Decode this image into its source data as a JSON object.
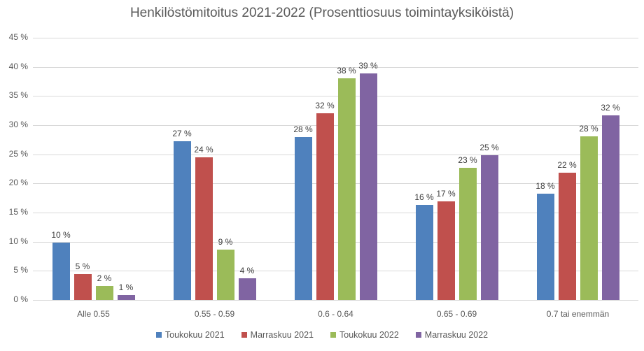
{
  "chart_data": {
    "type": "bar",
    "title": "Henkilöstömitoitus 2021-2022 (Prosenttiosuus toimintayksiköistä)",
    "xlabel": "",
    "ylabel": "",
    "ylim": [
      0,
      45
    ],
    "yticks": [
      "0 %",
      "5 %",
      "10 %",
      "15 %",
      "20 %",
      "25 %",
      "30 %",
      "35 %",
      "40 %",
      "45 %"
    ],
    "grid": true,
    "legend_position": "bottom",
    "categories": [
      "Alle 0.55",
      "0.55 - 0.59",
      "0.6 - 0.64",
      "0.65 - 0.69",
      "0.7 tai enemmän"
    ],
    "series": [
      {
        "name": "Toukokuu 2021",
        "color": "#4f81bd",
        "values": [
          9.9,
          27.2,
          28.0,
          16.3,
          18.3
        ],
        "labels": [
          "10 %",
          "27 %",
          "28 %",
          "16 %",
          "18 %"
        ]
      },
      {
        "name": "Marraskuu 2021",
        "color": "#c0504d",
        "values": [
          4.5,
          24.5,
          32.1,
          16.9,
          21.9
        ],
        "labels": [
          "5 %",
          "24 %",
          "32 %",
          "17 %",
          "22 %"
        ]
      },
      {
        "name": "Toukokuu 2022",
        "color": "#9bbb59",
        "values": [
          2.4,
          8.7,
          38.0,
          22.7,
          28.1
        ],
        "labels": [
          "2 %",
          "9 %",
          "38 %",
          "23 %",
          "28 %"
        ]
      },
      {
        "name": "Marraskuu 2022",
        "color": "#8064a2",
        "values": [
          0.9,
          3.7,
          38.9,
          24.8,
          31.7
        ],
        "labels": [
          "1 %",
          "4 %",
          "39 %",
          "25 %",
          "32 %"
        ]
      }
    ]
  }
}
